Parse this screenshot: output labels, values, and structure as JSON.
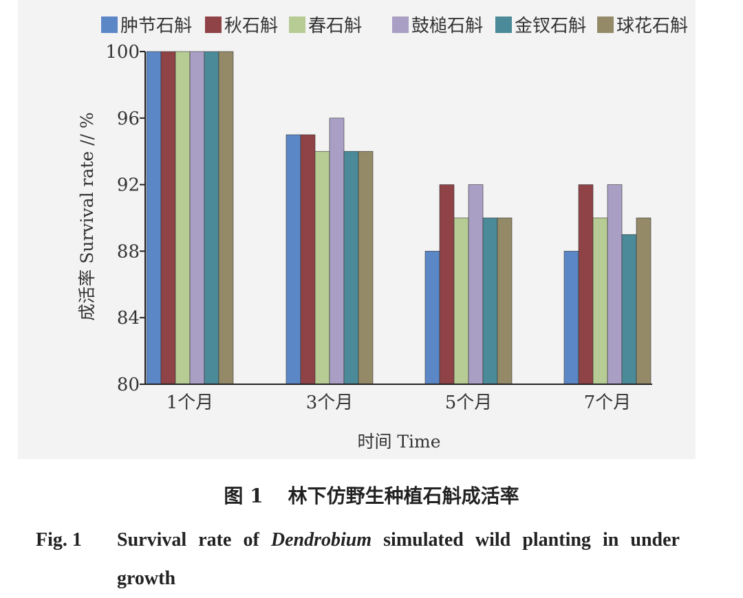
{
  "chart_data": {
    "type": "bar",
    "categories": [
      "1个月",
      "3个月",
      "5个月",
      "7个月"
    ],
    "series": [
      {
        "name": "肿节石斛",
        "color": "#5b87c7",
        "values": [
          100,
          95,
          88,
          88
        ]
      },
      {
        "name": "秋石斛",
        "color": "#8f4347",
        "values": [
          100,
          95,
          92,
          92
        ]
      },
      {
        "name": "春石斛",
        "color": "#b7cc94",
        "values": [
          100,
          94,
          90,
          90
        ]
      },
      {
        "name": "鼓槌石斛",
        "color": "#a99ec4",
        "values": [
          100,
          96,
          92,
          92
        ]
      },
      {
        "name": "金钗石斛",
        "color": "#4b8a98",
        "values": [
          100,
          94,
          90,
          89
        ]
      },
      {
        "name": "球花石斛",
        "color": "#948a68",
        "values": [
          100,
          94,
          90,
          90
        ]
      }
    ],
    "ylim": [
      80,
      100
    ],
    "yticks": [
      80,
      84,
      88,
      92,
      96,
      100
    ],
    "xlabel": "时间 Time",
    "ylabel": "成活率 Survival rate // %",
    "legend": "top",
    "grid": false
  },
  "caption": {
    "cn_num": "图 1",
    "cn_text": "林下仿野生种植石斛成活率",
    "en_label": "Fig. 1",
    "en_pre": "Survival rate of ",
    "en_italic": "Dendrobium",
    "en_post": " simulated wild planting in under growth"
  }
}
